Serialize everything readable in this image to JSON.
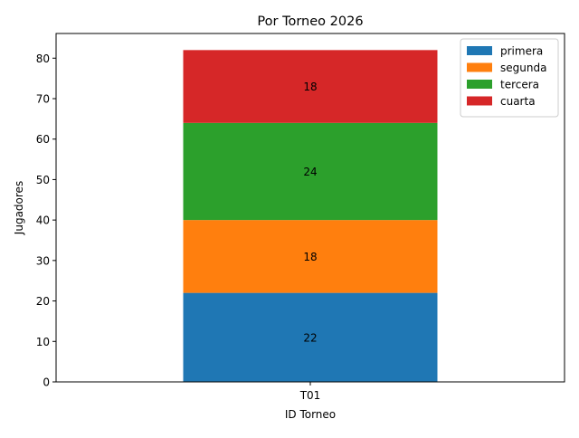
{
  "chart_data": {
    "type": "bar",
    "stacked": true,
    "title": "Por Torneo 2026",
    "xlabel": "ID Torneo",
    "ylabel": "Jugadores",
    "categories": [
      "T01"
    ],
    "ylim": [
      0,
      86.1
    ],
    "yticks": [
      0,
      10,
      20,
      30,
      40,
      50,
      60,
      70,
      80
    ],
    "grid": false,
    "legend_position": "top-right",
    "series": [
      {
        "name": "primera",
        "values": [
          22
        ],
        "color": "#1f77b4"
      },
      {
        "name": "segunda",
        "values": [
          18
        ],
        "color": "#ff7f0e"
      },
      {
        "name": "tercera",
        "values": [
          24
        ],
        "color": "#2ca02c"
      },
      {
        "name": "cuarta",
        "values": [
          18
        ],
        "color": "#d62728"
      }
    ]
  }
}
